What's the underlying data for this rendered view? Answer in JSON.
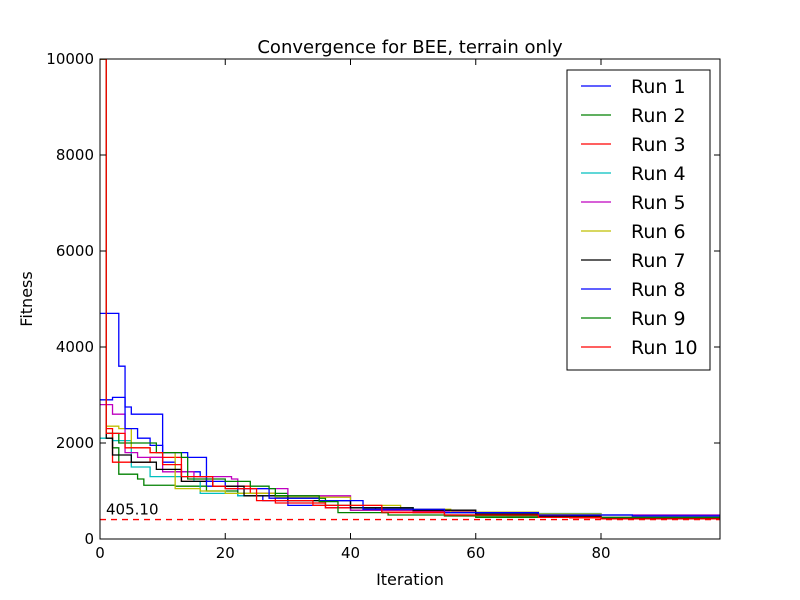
{
  "chart_data": {
    "type": "line",
    "title": "Convergence for BEE, terrain only",
    "xlabel": "Iteration",
    "ylabel": "Fitness",
    "xlim": [
      0,
      99
    ],
    "ylim": [
      0,
      10000
    ],
    "xticks": [
      0,
      20,
      40,
      60,
      80
    ],
    "yticks": [
      0,
      2000,
      4000,
      6000,
      8000,
      10000
    ],
    "grid": false,
    "legend_position": "top-right",
    "reference": {
      "value": 405.1,
      "label": "405.10",
      "color": "#ff0000",
      "style": "dashed"
    },
    "series": [
      {
        "name": "Run 1",
        "color": "#0000ff",
        "points": [
          [
            0,
            4700
          ],
          [
            2,
            4700
          ],
          [
            3,
            3600
          ],
          [
            4,
            2750
          ],
          [
            5,
            2600
          ],
          [
            9,
            2600
          ],
          [
            10,
            1600
          ],
          [
            12,
            1400
          ],
          [
            16,
            1300
          ],
          [
            17,
            1100
          ],
          [
            22,
            900
          ],
          [
            26,
            800
          ],
          [
            30,
            700
          ],
          [
            36,
            650
          ],
          [
            44,
            600
          ],
          [
            50,
            550
          ],
          [
            60,
            500
          ],
          [
            70,
            480
          ],
          [
            80,
            450
          ],
          [
            99,
            450
          ]
        ]
      },
      {
        "name": "Run 2",
        "color": "#008000",
        "points": [
          [
            0,
            10000
          ],
          [
            1,
            2200
          ],
          [
            2,
            1900
          ],
          [
            3,
            1350
          ],
          [
            5,
            1350
          ],
          [
            6,
            1250
          ],
          [
            7,
            1120
          ],
          [
            11,
            1120
          ],
          [
            12,
            1100
          ],
          [
            17,
            1000
          ],
          [
            22,
            950
          ],
          [
            30,
            850
          ],
          [
            36,
            700
          ],
          [
            40,
            600
          ],
          [
            50,
            550
          ],
          [
            60,
            450
          ],
          [
            80,
            430
          ],
          [
            99,
            430
          ]
        ]
      },
      {
        "name": "Run 3",
        "color": "#ff0000",
        "points": [
          [
            0,
            10000
          ],
          [
            1,
            2300
          ],
          [
            2,
            1600
          ],
          [
            7,
            1600
          ],
          [
            8,
            1700
          ],
          [
            12,
            1700
          ],
          [
            13,
            1200
          ],
          [
            18,
            1100
          ],
          [
            24,
            950
          ],
          [
            28,
            750
          ],
          [
            36,
            650
          ],
          [
            45,
            550
          ],
          [
            55,
            500
          ],
          [
            65,
            480
          ],
          [
            75,
            440
          ],
          [
            90,
            420
          ],
          [
            99,
            420
          ]
        ]
      },
      {
        "name": "Run 4",
        "color": "#00bfbf",
        "points": [
          [
            0,
            2100
          ],
          [
            1,
            2100
          ],
          [
            2,
            2050
          ],
          [
            5,
            1500
          ],
          [
            8,
            1300
          ],
          [
            15,
            1200
          ],
          [
            16,
            950
          ],
          [
            22,
            900
          ],
          [
            30,
            800
          ],
          [
            40,
            650
          ],
          [
            50,
            580
          ],
          [
            60,
            550
          ],
          [
            70,
            530
          ],
          [
            80,
            500
          ],
          [
            99,
            500
          ]
        ]
      },
      {
        "name": "Run 5",
        "color": "#bf00bf",
        "points": [
          [
            0,
            2800
          ],
          [
            1,
            2800
          ],
          [
            2,
            2600
          ],
          [
            4,
            1800
          ],
          [
            6,
            1700
          ],
          [
            10,
            1400
          ],
          [
            15,
            1300
          ],
          [
            21,
            1250
          ],
          [
            22,
            1050
          ],
          [
            30,
            900
          ],
          [
            40,
            600
          ],
          [
            50,
            580
          ],
          [
            60,
            560
          ],
          [
            70,
            520
          ],
          [
            80,
            500
          ],
          [
            99,
            480
          ]
        ]
      },
      {
        "name": "Run 6",
        "color": "#bfbf00",
        "points": [
          [
            0,
            10000
          ],
          [
            1,
            2350
          ],
          [
            3,
            2300
          ],
          [
            5,
            1900
          ],
          [
            8,
            1800
          ],
          [
            11,
            1800
          ],
          [
            12,
            1050
          ],
          [
            16,
            1000
          ],
          [
            20,
            950
          ],
          [
            28,
            870
          ],
          [
            35,
            870
          ],
          [
            40,
            700
          ],
          [
            48,
            620
          ],
          [
            54,
            620
          ],
          [
            56,
            560
          ],
          [
            70,
            520
          ],
          [
            80,
            450
          ],
          [
            99,
            440
          ]
        ]
      },
      {
        "name": "Run 7",
        "color": "#000000",
        "points": [
          [
            0,
            10000
          ],
          [
            1,
            2100
          ],
          [
            2,
            1750
          ],
          [
            5,
            1600
          ],
          [
            9,
            1450
          ],
          [
            13,
            1200
          ],
          [
            18,
            1100
          ],
          [
            23,
            900
          ],
          [
            30,
            800
          ],
          [
            40,
            650
          ],
          [
            50,
            600
          ],
          [
            60,
            520
          ],
          [
            70,
            470
          ],
          [
            80,
            440
          ],
          [
            99,
            440
          ]
        ]
      },
      {
        "name": "Run 8",
        "color": "#0000ff",
        "points": [
          [
            0,
            2900
          ],
          [
            1,
            2900
          ],
          [
            2,
            2950
          ],
          [
            4,
            2300
          ],
          [
            6,
            2100
          ],
          [
            8,
            1950
          ],
          [
            10,
            1800
          ],
          [
            14,
            1700
          ],
          [
            17,
            1200
          ],
          [
            20,
            1050
          ],
          [
            27,
            850
          ],
          [
            35,
            800
          ],
          [
            42,
            620
          ],
          [
            55,
            550
          ],
          [
            70,
            500
          ],
          [
            85,
            480
          ],
          [
            99,
            480
          ]
        ]
      },
      {
        "name": "Run 9",
        "color": "#008000",
        "points": [
          [
            0,
            10000
          ],
          [
            1,
            2200
          ],
          [
            3,
            2000
          ],
          [
            5,
            2000
          ],
          [
            9,
            1800
          ],
          [
            13,
            1700
          ],
          [
            14,
            1250
          ],
          [
            20,
            1200
          ],
          [
            24,
            1100
          ],
          [
            27,
            1050
          ],
          [
            28,
            900
          ],
          [
            35,
            780
          ],
          [
            38,
            550
          ],
          [
            46,
            500
          ],
          [
            55,
            480
          ],
          [
            70,
            450
          ],
          [
            99,
            450
          ]
        ]
      },
      {
        "name": "Run 10",
        "color": "#ff0000",
        "points": [
          [
            0,
            10000
          ],
          [
            1,
            2200
          ],
          [
            4,
            1900
          ],
          [
            8,
            1800
          ],
          [
            10,
            1550
          ],
          [
            13,
            1300
          ],
          [
            18,
            1100
          ],
          [
            20,
            1050
          ],
          [
            25,
            800
          ],
          [
            34,
            700
          ],
          [
            45,
            560
          ],
          [
            55,
            500
          ],
          [
            70,
            450
          ],
          [
            80,
            420
          ],
          [
            99,
            420
          ]
        ]
      }
    ]
  }
}
